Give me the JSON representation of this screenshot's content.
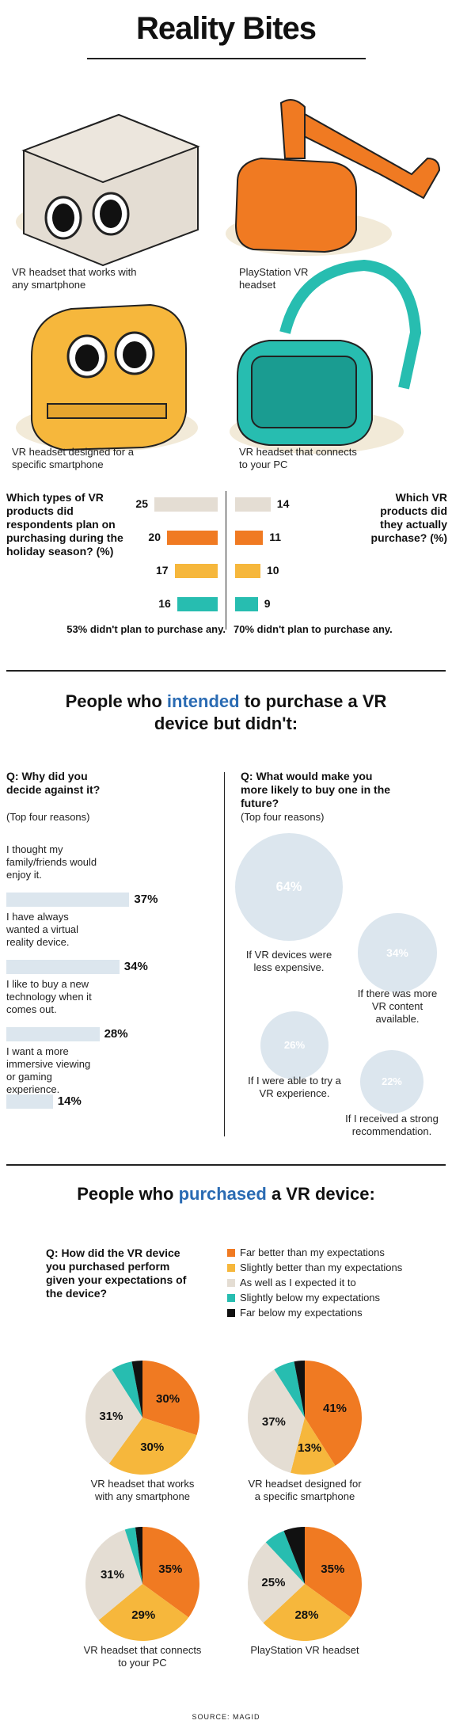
{
  "title": "Reality Bites",
  "products": [
    {
      "caption": "VR headset that works with any smartphone",
      "icon": "cardboard-headset-icon",
      "color": "#e4ddd3"
    },
    {
      "caption": "PlayStation VR headset",
      "icon": "playstation-vr-headset-icon",
      "color": "#f07a22"
    },
    {
      "caption": "VR headset designed for a specific smartphone",
      "icon": "phone-specific-headset-icon",
      "color": "#f6b73c"
    },
    {
      "caption": "VR headset that connects to your PC",
      "icon": "pc-headset-icon",
      "color": "#27bdb0"
    }
  ],
  "plan_question": "Which types of VR products did respondents plan on purchasing during the holiday season? (%)",
  "actual_question": "Which VR products did they actually purchase? (%)",
  "plan_note": "53% didn't plan to purchase any.",
  "actual_note": "70% didn't plan to purchase any.",
  "colors": {
    "cardboard": "#e4ddd3",
    "psvr": "#f07a22",
    "phone": "#f6b73c",
    "pc": "#27bdb0",
    "bubble": "#dce6ee",
    "accent_blue": "#2a6bb3",
    "far_below": "#111111"
  },
  "section2": {
    "heading_pre": "People who ",
    "heading_em": "intended",
    "heading_post": " to purchase a VR device but didn't:",
    "left_q": "Q: Why did you decide against it?",
    "left_sub": "(Top four reasons)",
    "right_q": "Q: What would make you more likely to buy one in the future?",
    "right_sub": "(Top four reasons)"
  },
  "section3": {
    "heading_pre": "People who ",
    "heading_em": "purchased",
    "heading_post": " a VR device:",
    "question": "Q: How did the VR device you purchased perform given your expectations of the device?",
    "legend": [
      {
        "label": "Far better than my expectations",
        "color": "#f07a22"
      },
      {
        "label": "Slightly better than my expectations",
        "color": "#f6b73c"
      },
      {
        "label": "As well as I expected it to",
        "color": "#e4ddd3"
      },
      {
        "label": "Slightly below my expectations",
        "color": "#27bdb0"
      },
      {
        "label": "Far below my expectations",
        "color": "#111111"
      }
    ]
  },
  "source": "SOURCE: MAGID",
  "chart_data": [
    {
      "type": "bar",
      "title": "Which types of VR products did respondents plan on purchasing during the holiday season? (%)",
      "categories": [
        "VR headset that works with any smartphone",
        "PlayStation VR headset",
        "VR headset designed for a specific smartphone",
        "VR headset that connects to your PC"
      ],
      "series": [
        {
          "name": "Planned",
          "values": [
            25,
            20,
            17,
            16
          ]
        },
        {
          "name": "Purchased",
          "values": [
            14,
            11,
            10,
            9
          ]
        }
      ]
    },
    {
      "type": "bar",
      "title": "Q: Why did you decide against it?",
      "categories": [
        "I thought my family/friends would enjoy it.",
        "I have always wanted a virtual reality device.",
        "I like to buy a new technology when it comes out.",
        "I want a more immersive viewing or gaming experience."
      ],
      "values": [
        37,
        34,
        28,
        14
      ],
      "labels": [
        "37%",
        "34%",
        "28%",
        "14%"
      ]
    },
    {
      "type": "scatter",
      "title": "Q: What would make you more likely to buy one in the future?",
      "categories": [
        "If VR devices were less expensive.",
        "If there was more VR content available.",
        "If I were able to try a VR experience.",
        "If I received a strong recommendation."
      ],
      "values": [
        64,
        34,
        26,
        22
      ],
      "labels": [
        "64%",
        "34%",
        "26%",
        "22%"
      ]
    },
    {
      "type": "pie",
      "title": "Q: How did the VR device you purchased perform given your expectations of the device?",
      "categories": [
        "Far better than my expectations",
        "Slightly better than my expectations",
        "As well as I expected it to",
        "Slightly below my expectations",
        "Far below my expectations"
      ],
      "pies": [
        {
          "name": "VR headset that works with any smartphone",
          "values": [
            30,
            30,
            31,
            6,
            3
          ],
          "labels": [
            "30%",
            "30%",
            "31%",
            "",
            ""
          ]
        },
        {
          "name": "VR headset designed for a specific smartphone",
          "values": [
            41,
            13,
            37,
            6,
            3
          ],
          "labels": [
            "41%",
            "13%",
            "37%",
            "",
            ""
          ]
        },
        {
          "name": "VR headset that connects to your PC",
          "values": [
            35,
            29,
            31,
            3,
            2
          ],
          "labels": [
            "35%",
            "29%",
            "31%",
            "",
            ""
          ]
        },
        {
          "name": "PlayStation VR headset",
          "values": [
            35,
            28,
            25,
            6,
            6
          ],
          "labels": [
            "35%",
            "28%",
            "25%",
            "",
            ""
          ]
        }
      ]
    }
  ]
}
